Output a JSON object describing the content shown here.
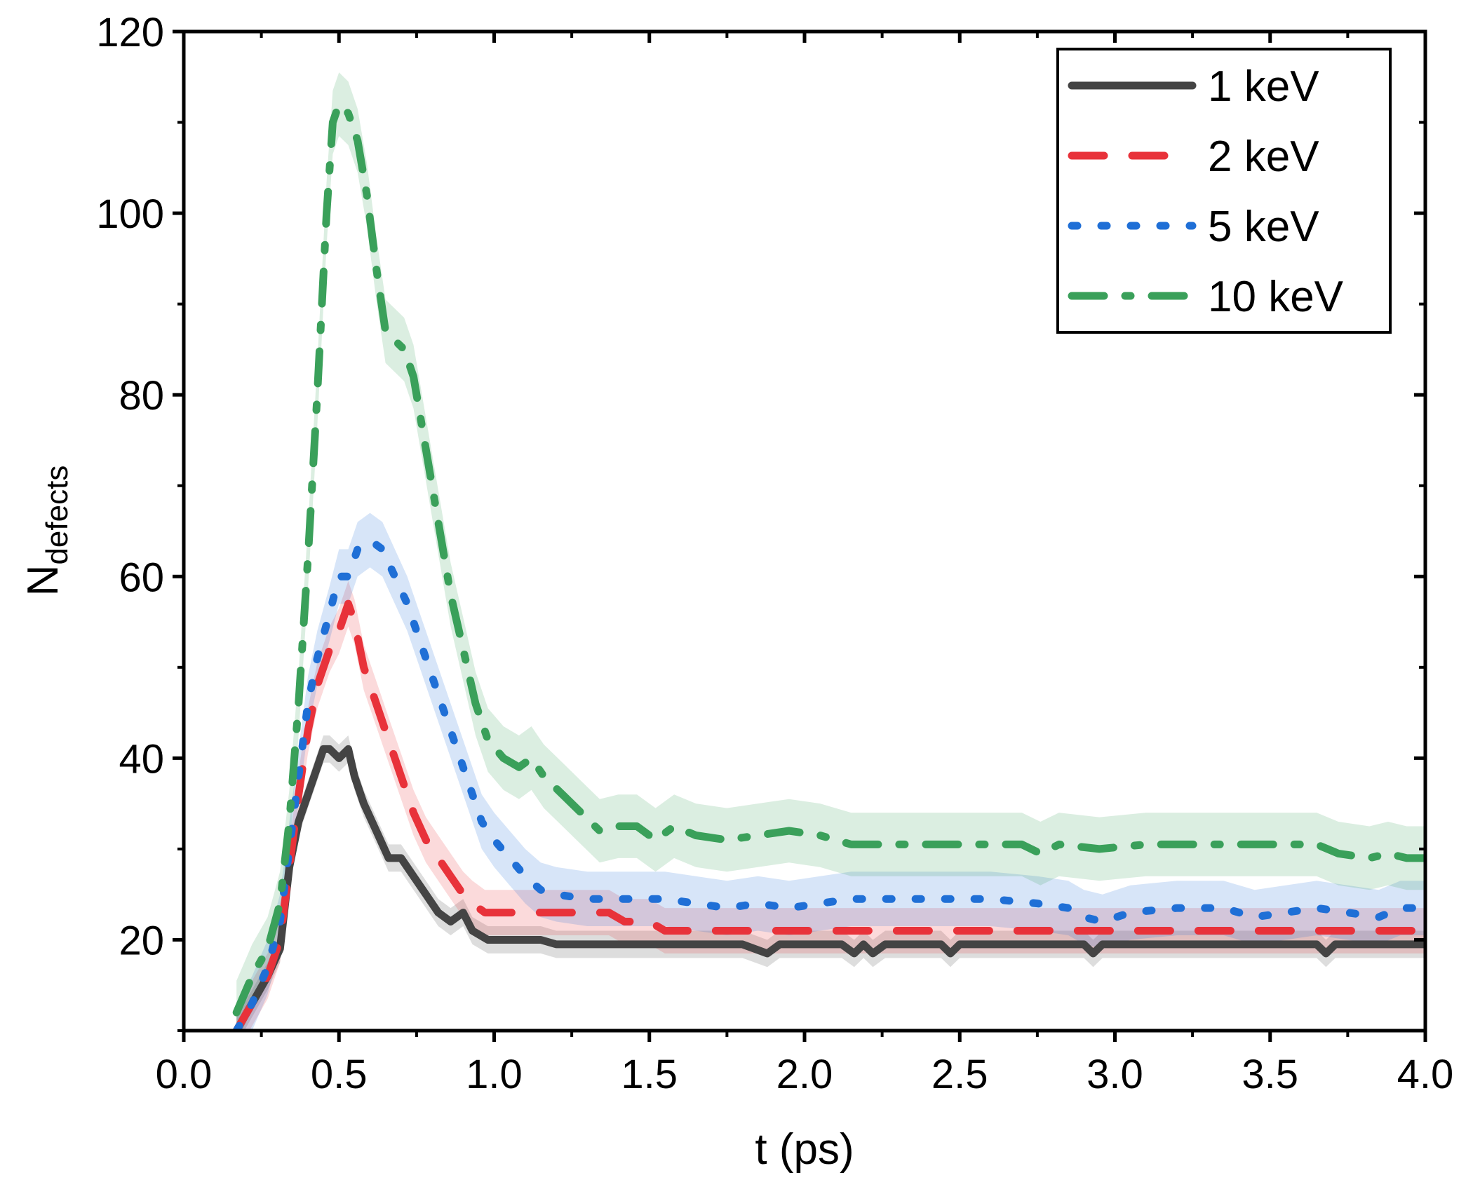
{
  "chart_data": {
    "type": "line",
    "xlabel": "t (ps)",
    "ylabel": {
      "main": "N",
      "subscript": "defects"
    },
    "xlim": [
      0.0,
      4.0
    ],
    "ylim": [
      10,
      120
    ],
    "xticks": [
      "0.0",
      "0.5",
      "1.0",
      "1.5",
      "2.0",
      "2.5",
      "3.0",
      "3.5",
      "4.0"
    ],
    "yticks": [
      "20",
      "40",
      "60",
      "80",
      "100",
      "120"
    ],
    "legend_position": "top-right",
    "series": [
      {
        "name": "1 keV",
        "color": "#444444",
        "style": "solid",
        "band": 1.5,
        "points": [
          [
            0.17,
            10
          ],
          [
            0.22,
            13
          ],
          [
            0.27,
            16
          ],
          [
            0.31,
            19
          ],
          [
            0.34,
            28
          ],
          [
            0.37,
            33
          ],
          [
            0.4,
            36
          ],
          [
            0.43,
            39
          ],
          [
            0.45,
            41
          ],
          [
            0.47,
            41
          ],
          [
            0.5,
            40
          ],
          [
            0.53,
            41
          ],
          [
            0.55,
            38
          ],
          [
            0.58,
            35
          ],
          [
            0.62,
            32
          ],
          [
            0.66,
            29
          ],
          [
            0.7,
            29
          ],
          [
            0.74,
            27
          ],
          [
            0.78,
            25
          ],
          [
            0.82,
            23
          ],
          [
            0.86,
            22
          ],
          [
            0.9,
            23
          ],
          [
            0.93,
            21
          ],
          [
            0.98,
            20
          ],
          [
            1.05,
            20
          ],
          [
            1.15,
            20
          ],
          [
            1.2,
            19.5
          ],
          [
            1.8,
            19.5
          ],
          [
            1.88,
            18.5
          ],
          [
            1.92,
            19.5
          ],
          [
            2.12,
            19.5
          ],
          [
            2.16,
            18.5
          ],
          [
            2.19,
            19.5
          ],
          [
            2.22,
            18.5
          ],
          [
            2.26,
            19.5
          ],
          [
            2.44,
            19.5
          ],
          [
            2.47,
            18.5
          ],
          [
            2.5,
            19.5
          ],
          [
            2.9,
            19.5
          ],
          [
            2.93,
            18.5
          ],
          [
            2.96,
            19.5
          ],
          [
            3.65,
            19.5
          ],
          [
            3.68,
            18.5
          ],
          [
            3.71,
            19.5
          ],
          [
            4.0,
            19.5
          ]
        ]
      },
      {
        "name": "2 keV",
        "color": "#e8323a",
        "style": "dashed",
        "band": 2.5,
        "points": [
          [
            0.17,
            10
          ],
          [
            0.22,
            13
          ],
          [
            0.27,
            16
          ],
          [
            0.31,
            20
          ],
          [
            0.34,
            28
          ],
          [
            0.37,
            36
          ],
          [
            0.4,
            43
          ],
          [
            0.43,
            48
          ],
          [
            0.47,
            52
          ],
          [
            0.5,
            54
          ],
          [
            0.53,
            57
          ],
          [
            0.55,
            55
          ],
          [
            0.58,
            50
          ],
          [
            0.62,
            46
          ],
          [
            0.66,
            42
          ],
          [
            0.7,
            38
          ],
          [
            0.74,
            34
          ],
          [
            0.78,
            31
          ],
          [
            0.82,
            29
          ],
          [
            0.86,
            27
          ],
          [
            0.9,
            25
          ],
          [
            0.93,
            24
          ],
          [
            0.97,
            23
          ],
          [
            1.05,
            23
          ],
          [
            1.15,
            23
          ],
          [
            1.2,
            23
          ],
          [
            1.3,
            23
          ],
          [
            1.37,
            23
          ],
          [
            1.42,
            22
          ],
          [
            1.5,
            22
          ],
          [
            1.55,
            21
          ],
          [
            4.0,
            21
          ]
        ]
      },
      {
        "name": "5 keV",
        "color": "#1f6fd6",
        "style": "dotted",
        "band": 3,
        "points": [
          [
            0.17,
            10
          ],
          [
            0.22,
            13
          ],
          [
            0.27,
            17
          ],
          [
            0.31,
            22
          ],
          [
            0.34,
            30
          ],
          [
            0.37,
            38
          ],
          [
            0.4,
            46
          ],
          [
            0.43,
            51
          ],
          [
            0.47,
            56
          ],
          [
            0.5,
            60
          ],
          [
            0.53,
            60
          ],
          [
            0.56,
            63
          ],
          [
            0.6,
            64
          ],
          [
            0.64,
            63
          ],
          [
            0.68,
            60
          ],
          [
            0.72,
            57
          ],
          [
            0.76,
            53
          ],
          [
            0.8,
            49
          ],
          [
            0.84,
            45
          ],
          [
            0.88,
            41
          ],
          [
            0.92,
            37
          ],
          [
            0.96,
            33
          ],
          [
            1.0,
            31
          ],
          [
            1.05,
            29
          ],
          [
            1.1,
            27
          ],
          [
            1.15,
            25.5
          ],
          [
            1.2,
            25
          ],
          [
            1.3,
            24.5
          ],
          [
            1.4,
            24.5
          ],
          [
            1.55,
            24.5
          ],
          [
            1.65,
            24
          ],
          [
            1.75,
            23.5
          ],
          [
            1.85,
            24
          ],
          [
            1.95,
            23.5
          ],
          [
            2.05,
            24
          ],
          [
            2.15,
            24.5
          ],
          [
            2.3,
            24.5
          ],
          [
            2.45,
            24.5
          ],
          [
            2.6,
            24.5
          ],
          [
            2.75,
            24
          ],
          [
            2.85,
            23.5
          ],
          [
            2.9,
            22.5
          ],
          [
            2.96,
            22
          ],
          [
            3.05,
            23
          ],
          [
            3.2,
            23.5
          ],
          [
            3.35,
            23.5
          ],
          [
            3.45,
            22.5
          ],
          [
            3.55,
            23
          ],
          [
            3.65,
            23.5
          ],
          [
            3.75,
            23
          ],
          [
            3.85,
            22.5
          ],
          [
            3.92,
            23.5
          ],
          [
            4.0,
            23.5
          ]
        ]
      },
      {
        "name": "10 keV",
        "color": "#3aa05a",
        "style": "dashdot",
        "band": 3.5,
        "points": [
          [
            0.17,
            12
          ],
          [
            0.22,
            16
          ],
          [
            0.27,
            19
          ],
          [
            0.31,
            24
          ],
          [
            0.34,
            33
          ],
          [
            0.37,
            46
          ],
          [
            0.4,
            62
          ],
          [
            0.43,
            80
          ],
          [
            0.46,
            100
          ],
          [
            0.48,
            110
          ],
          [
            0.5,
            112
          ],
          [
            0.53,
            111
          ],
          [
            0.56,
            108
          ],
          [
            0.59,
            102
          ],
          [
            0.62,
            94
          ],
          [
            0.65,
            87
          ],
          [
            0.68,
            86
          ],
          [
            0.71,
            85
          ],
          [
            0.74,
            82
          ],
          [
            0.78,
            74
          ],
          [
            0.82,
            66
          ],
          [
            0.86,
            58
          ],
          [
            0.9,
            52
          ],
          [
            0.94,
            46
          ],
          [
            0.98,
            42
          ],
          [
            1.03,
            40
          ],
          [
            1.08,
            39
          ],
          [
            1.12,
            40
          ],
          [
            1.16,
            38
          ],
          [
            1.22,
            36
          ],
          [
            1.28,
            34
          ],
          [
            1.34,
            32
          ],
          [
            1.4,
            32.5
          ],
          [
            1.46,
            32.5
          ],
          [
            1.52,
            31
          ],
          [
            1.58,
            32.5
          ],
          [
            1.65,
            31.5
          ],
          [
            1.75,
            31
          ],
          [
            1.85,
            31.5
          ],
          [
            1.95,
            32
          ],
          [
            2.05,
            31.5
          ],
          [
            2.15,
            30.5
          ],
          [
            2.3,
            30.5
          ],
          [
            2.45,
            30.5
          ],
          [
            2.55,
            30.5
          ],
          [
            2.7,
            30.5
          ],
          [
            2.76,
            29.5
          ],
          [
            2.82,
            30.5
          ],
          [
            2.95,
            30
          ],
          [
            3.1,
            30.5
          ],
          [
            3.3,
            30.5
          ],
          [
            3.5,
            30.5
          ],
          [
            3.65,
            30.5
          ],
          [
            3.72,
            29.5
          ],
          [
            3.82,
            29
          ],
          [
            3.88,
            29.5
          ],
          [
            3.94,
            29
          ],
          [
            4.0,
            29
          ]
        ]
      }
    ]
  }
}
